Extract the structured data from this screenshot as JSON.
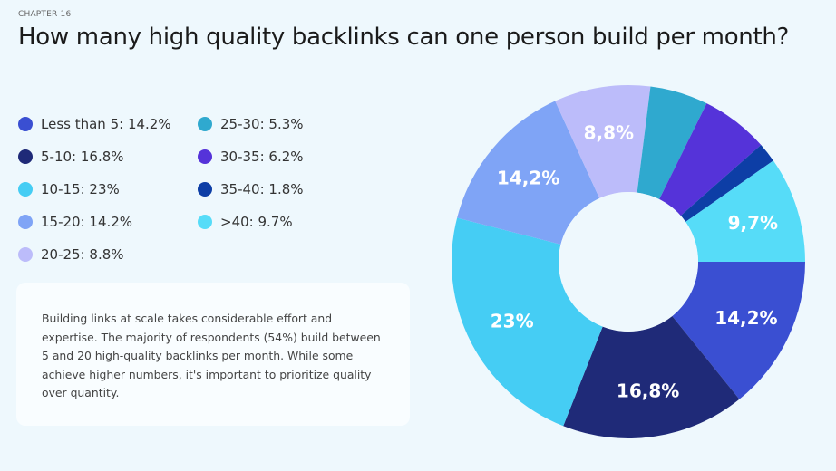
{
  "header": {
    "chapter": "CHAPTER 16",
    "title": "How many high quality backlinks can one person build per month?"
  },
  "note": "Building links at scale takes considerable effort and expertise. The majority of respondents (54%) build between 5 and 20 high-quality backlinks per month. While some achieve higher numbers, it's important to prioritize quality over quantity.",
  "chart_data": {
    "type": "pie",
    "donut": true,
    "title": "How many high quality backlinks can one person build per month?",
    "legend_position": "left",
    "categories": [
      "Less than 5",
      "5-10",
      "10-15",
      "15-20",
      "20-25",
      "25-30",
      "30-35",
      "35-40",
      ">40"
    ],
    "values": [
      14.2,
      16.8,
      23,
      14.2,
      8.8,
      5.3,
      6.2,
      1.8,
      9.7
    ],
    "legend_labels": [
      "Less than 5: 14.2%",
      "5-10: 16.8%",
      "10-15: 23%",
      "15-20: 14.2%",
      "20-25: 8.8%",
      "25-30: 5.3%",
      "30-35: 6.2%",
      "35-40: 1.8%",
      ">40: 9.7%"
    ],
    "data_labels": [
      "14,2%",
      "16,8%",
      "23%",
      "14,2%",
      "8,8%",
      "",
      "",
      "",
      "9,7%"
    ],
    "colors": [
      "#3a4fd2",
      "#1f2a78",
      "#45cdf4",
      "#7fa4f6",
      "#bcbcfa",
      "#2fa9cf",
      "#5533d9",
      "#0d3ea6",
      "#56dcf8"
    ]
  }
}
